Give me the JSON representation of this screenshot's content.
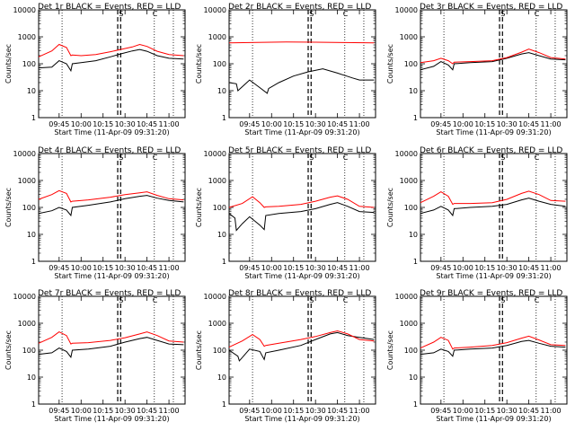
{
  "colors": {
    "events": "#000000",
    "lld": "#ff0000",
    "axes": "#000000",
    "background": "#ffffff"
  },
  "chart_data": [
    {
      "type": "line",
      "title": "Det 1r BLACK = Events, RED = LLD",
      "xlabel": "Start Time (11-Apr-09 09:31:20)",
      "ylabel": "Counts/sec",
      "yscale": "log",
      "ylim": [
        1,
        10000
      ],
      "xlim": [
        "09:31",
        "11:11"
      ],
      "yticks": [
        "1",
        "10",
        "100",
        "1000",
        "10000"
      ],
      "xticks": [
        "09:45",
        "10:00",
        "10:15",
        "10:30",
        "10:45",
        "11:00"
      ],
      "markers": [
        "S",
        "C"
      ],
      "vlines_dotted": [
        "09:47",
        "10:50",
        "11:03"
      ],
      "vlines_dashed": [
        "10:25",
        "10:27"
      ],
      "series": [
        {
          "name": "Events",
          "x": [
            "09:31",
            "09:40",
            "09:45",
            "09:50",
            "09:53",
            "09:54",
            "10:00",
            "10:10",
            "10:20",
            "10:28",
            "10:35",
            "10:40",
            "10:45",
            "10:52",
            "11:00",
            "11:10"
          ],
          "y": [
            70,
            75,
            130,
            100,
            55,
            100,
            110,
            130,
            180,
            240,
            300,
            340,
            290,
            200,
            160,
            150
          ]
        },
        {
          "name": "LLD",
          "x": [
            "09:31",
            "09:40",
            "09:45",
            "09:50",
            "09:53",
            "09:54",
            "10:00",
            "10:10",
            "10:20",
            "10:28",
            "10:35",
            "10:40",
            "10:45",
            "10:52",
            "11:00",
            "11:10"
          ],
          "y": [
            180,
            300,
            520,
            400,
            200,
            210,
            200,
            220,
            280,
            350,
            420,
            520,
            440,
            290,
            220,
            200
          ]
        }
      ]
    },
    {
      "type": "line",
      "title": "Det 2r BLACK = Events, RED = LLD",
      "xlabel": "Start Time (11-Apr-09 09:31:20)",
      "ylabel": "Counts/sec",
      "yscale": "log",
      "ylim": [
        1,
        10000
      ],
      "xlim": [
        "09:31",
        "11:11"
      ],
      "yticks": [
        "1",
        "10",
        "100",
        "1000",
        "10000"
      ],
      "xticks": [
        "09:45",
        "10:00",
        "10:15",
        "10:30",
        "10:45",
        "11:00"
      ],
      "markers": [
        "S",
        "C"
      ],
      "vlines_dotted": [
        "09:47",
        "10:50",
        "11:03"
      ],
      "vlines_dashed": [
        "10:25",
        "10:27"
      ],
      "series": [
        {
          "name": "Events",
          "x": [
            "09:31",
            "09:36",
            "09:37",
            "09:45",
            "09:52",
            "09:57",
            "09:58",
            "10:05",
            "10:15",
            "10:25",
            "10:35",
            "10:45",
            "10:55",
            "11:00",
            "11:10"
          ],
          "y": [
            20,
            18,
            10,
            25,
            13,
            8,
            12,
            20,
            35,
            50,
            65,
            45,
            30,
            25,
            25
          ]
        },
        {
          "name": "LLD",
          "x": [
            "09:31",
            "09:50",
            "10:10",
            "10:30",
            "10:50",
            "11:10"
          ],
          "y": [
            600,
            620,
            640,
            630,
            610,
            600
          ]
        }
      ]
    },
    {
      "type": "line",
      "title": "Det 3r BLACK = Events, RED = LLD",
      "xlabel": "Start Time (11-Apr-09 09:31:20)",
      "ylabel": "Counts/sec",
      "yscale": "log",
      "ylim": [
        1,
        10000
      ],
      "xlim": [
        "09:31",
        "11:11"
      ],
      "yticks": [
        "1",
        "10",
        "100",
        "1000",
        "10000"
      ],
      "xticks": [
        "09:45",
        "10:00",
        "10:15",
        "10:30",
        "10:45",
        "11:00"
      ],
      "markers": [
        "S",
        "C"
      ],
      "vlines_dotted": [
        "09:47",
        "10:50",
        "11:03"
      ],
      "vlines_dashed": [
        "10:25",
        "10:27"
      ],
      "series": [
        {
          "name": "Events",
          "x": [
            "09:31",
            "09:40",
            "09:45",
            "09:50",
            "09:53",
            "09:54",
            "10:05",
            "10:20",
            "10:30",
            "10:40",
            "10:45",
            "10:52",
            "11:00",
            "11:10"
          ],
          "y": [
            60,
            80,
            120,
            90,
            60,
            100,
            110,
            120,
            160,
            230,
            260,
            200,
            150,
            140
          ]
        },
        {
          "name": "LLD",
          "x": [
            "09:31",
            "09:40",
            "09:45",
            "09:50",
            "09:53",
            "09:54",
            "10:05",
            "10:20",
            "10:30",
            "10:40",
            "10:45",
            "10:52",
            "11:00",
            "11:10"
          ],
          "y": [
            110,
            130,
            160,
            130,
            100,
            115,
            120,
            130,
            170,
            270,
            350,
            260,
            170,
            150
          ]
        }
      ]
    },
    {
      "type": "line",
      "title": "Det 4r BLACK = Events, RED = LLD",
      "xlabel": "Start Time (11-Apr-09 09:31:20)",
      "ylabel": "Counts/sec",
      "yscale": "log",
      "ylim": [
        1,
        10000
      ],
      "xlim": [
        "09:31",
        "11:11"
      ],
      "yticks": [
        "1",
        "10",
        "100",
        "1000",
        "10000"
      ],
      "xticks": [
        "09:45",
        "10:00",
        "10:15",
        "10:30",
        "10:45",
        "11:00"
      ],
      "markers": [
        "S",
        "C"
      ],
      "vlines_dotted": [
        "09:47",
        "10:50",
        "11:03"
      ],
      "vlines_dashed": [
        "10:25",
        "10:27"
      ],
      "series": [
        {
          "name": "Events",
          "x": [
            "09:31",
            "09:40",
            "09:45",
            "09:50",
            "09:53",
            "09:54",
            "10:05",
            "10:20",
            "10:30",
            "10:40",
            "10:45",
            "10:52",
            "11:00",
            "11:10"
          ],
          "y": [
            60,
            75,
            100,
            80,
            50,
            100,
            120,
            160,
            210,
            260,
            280,
            220,
            180,
            160
          ]
        },
        {
          "name": "LLD",
          "x": [
            "09:31",
            "09:40",
            "09:45",
            "09:50",
            "09:53",
            "09:54",
            "10:05",
            "10:20",
            "10:30",
            "10:40",
            "10:45",
            "10:52",
            "11:00",
            "11:10"
          ],
          "y": [
            200,
            300,
            420,
            330,
            160,
            170,
            190,
            240,
            300,
            350,
            380,
            280,
            210,
            190
          ]
        }
      ]
    },
    {
      "type": "line",
      "title": "Det 5r BLACK = Events, RED = LLD",
      "xlabel": "Start Time (11-Apr-09 09:31:20)",
      "ylabel": "Counts/sec",
      "yscale": "log",
      "ylim": [
        1,
        10000
      ],
      "xlim": [
        "09:31",
        "11:11"
      ],
      "yticks": [
        "1",
        "10",
        "100",
        "1000",
        "10000"
      ],
      "xticks": [
        "09:45",
        "10:00",
        "10:15",
        "10:30",
        "10:45",
        "11:00"
      ],
      "markers": [
        "S",
        "C"
      ],
      "vlines_dotted": [
        "09:47",
        "10:50",
        "11:03"
      ],
      "vlines_dashed": [
        "10:25",
        "10:27"
      ],
      "series": [
        {
          "name": "Events",
          "x": [
            "09:31",
            "09:35",
            "09:36",
            "09:40",
            "09:45",
            "09:52",
            "09:55",
            "09:56",
            "10:05",
            "10:20",
            "10:30",
            "10:40",
            "10:45",
            "10:52",
            "11:00",
            "11:10"
          ],
          "y": [
            60,
            40,
            14,
            25,
            45,
            22,
            15,
            50,
            60,
            70,
            90,
            130,
            150,
            110,
            70,
            65
          ]
        },
        {
          "name": "LLD",
          "x": [
            "09:31",
            "09:40",
            "09:47",
            "09:52",
            "09:55",
            "09:56",
            "10:05",
            "10:20",
            "10:30",
            "10:40",
            "10:45",
            "10:52",
            "11:00",
            "11:10"
          ],
          "y": [
            100,
            140,
            250,
            150,
            100,
            105,
            110,
            130,
            170,
            240,
            270,
            200,
            110,
            100
          ]
        }
      ]
    },
    {
      "type": "line",
      "title": "Det 6r BLACK = Events, RED = LLD",
      "xlabel": "Start Time (11-Apr-09 09:31:20)",
      "ylabel": "Counts/sec",
      "yscale": "log",
      "ylim": [
        1,
        10000
      ],
      "xlim": [
        "09:31",
        "11:11"
      ],
      "yticks": [
        "1",
        "10",
        "100",
        "1000",
        "10000"
      ],
      "xticks": [
        "09:45",
        "10:00",
        "10:15",
        "10:30",
        "10:45",
        "11:00"
      ],
      "markers": [
        "S",
        "C"
      ],
      "vlines_dotted": [
        "09:47",
        "10:50",
        "11:03"
      ],
      "vlines_dashed": [
        "10:25",
        "10:27"
      ],
      "series": [
        {
          "name": "Events",
          "x": [
            "09:31",
            "09:40",
            "09:45",
            "09:50",
            "09:53",
            "09:54",
            "10:05",
            "10:20",
            "10:30",
            "10:40",
            "10:45",
            "10:52",
            "11:00",
            "11:10"
          ],
          "y": [
            60,
            80,
            110,
            80,
            50,
            90,
            100,
            110,
            130,
            190,
            220,
            170,
            130,
            110
          ]
        },
        {
          "name": "LLD",
          "x": [
            "09:31",
            "09:40",
            "09:45",
            "09:50",
            "09:53",
            "09:54",
            "10:05",
            "10:20",
            "10:30",
            "10:40",
            "10:45",
            "10:52",
            "11:00",
            "11:10"
          ],
          "y": [
            150,
            260,
            380,
            260,
            130,
            140,
            140,
            150,
            200,
            330,
            400,
            300,
            180,
            170
          ]
        }
      ]
    },
    {
      "type": "line",
      "title": "Det 7r BLACK = Events, RED = LLD",
      "xlabel": "Start Time (11-Apr-09 09:31:20)",
      "ylabel": "Counts/sec",
      "yscale": "log",
      "ylim": [
        1,
        10000
      ],
      "xlim": [
        "09:31",
        "11:11"
      ],
      "yticks": [
        "1",
        "10",
        "100",
        "1000",
        "10000"
      ],
      "xticks": [
        "09:45",
        "10:00",
        "10:15",
        "10:30",
        "10:45",
        "11:00"
      ],
      "markers": [
        "S",
        "C"
      ],
      "vlines_dotted": [
        "09:47",
        "10:50",
        "11:03"
      ],
      "vlines_dashed": [
        "10:25",
        "10:27"
      ],
      "series": [
        {
          "name": "Events",
          "x": [
            "09:31",
            "09:40",
            "09:45",
            "09:50",
            "09:53",
            "09:54",
            "10:05",
            "10:20",
            "10:30",
            "10:40",
            "10:45",
            "10:52",
            "11:00",
            "11:10"
          ],
          "y": [
            70,
            80,
            120,
            90,
            55,
            100,
            110,
            140,
            200,
            270,
            300,
            230,
            170,
            160
          ]
        },
        {
          "name": "LLD",
          "x": [
            "09:31",
            "09:40",
            "09:45",
            "09:50",
            "09:53",
            "09:54",
            "10:05",
            "10:20",
            "10:30",
            "10:40",
            "10:45",
            "10:52",
            "11:00",
            "11:10"
          ],
          "y": [
            180,
            300,
            480,
            350,
            170,
            180,
            190,
            230,
            290,
            400,
            480,
            350,
            220,
            200
          ]
        }
      ]
    },
    {
      "type": "line",
      "title": "Det 8r BLACK = Events, RED = LLD",
      "xlabel": "Start Time (11-Apr-09 09:31:20)",
      "ylabel": "Counts/sec",
      "yscale": "log",
      "ylim": [
        1,
        10000
      ],
      "xlim": [
        "09:31",
        "11:11"
      ],
      "yticks": [
        "1",
        "10",
        "100",
        "1000",
        "10000"
      ],
      "xticks": [
        "09:45",
        "10:00",
        "10:15",
        "10:30",
        "10:45",
        "11:00"
      ],
      "markers": [
        "S",
        "C"
      ],
      "vlines_dotted": [
        "09:47",
        "10:50",
        "11:03"
      ],
      "vlines_dashed": [
        "10:25",
        "10:27"
      ],
      "series": [
        {
          "name": "Events",
          "x": [
            "09:31",
            "09:37",
            "09:38",
            "09:45",
            "09:52",
            "09:55",
            "09:56",
            "10:05",
            "10:20",
            "10:30",
            "10:40",
            "10:45",
            "10:52",
            "11:00",
            "11:10"
          ],
          "y": [
            100,
            60,
            40,
            110,
            90,
            45,
            80,
            100,
            150,
            250,
            400,
            450,
            350,
            300,
            250
          ]
        },
        {
          "name": "LLD",
          "x": [
            "09:31",
            "09:40",
            "09:47",
            "09:52",
            "09:55",
            "09:56",
            "10:05",
            "10:20",
            "10:30",
            "10:40",
            "10:45",
            "10:52",
            "11:00",
            "11:10"
          ],
          "y": [
            130,
            220,
            380,
            250,
            140,
            150,
            180,
            250,
            320,
            450,
            520,
            400,
            250,
            220
          ]
        }
      ]
    },
    {
      "type": "line",
      "title": "Det 9r BLACK = Events, RED = LLD",
      "xlabel": "Start Time (11-Apr-09 09:31:20)",
      "ylabel": "Counts/sec",
      "yscale": "log",
      "ylim": [
        1,
        10000
      ],
      "xlim": [
        "09:31",
        "11:11"
      ],
      "yticks": [
        "1",
        "10",
        "100",
        "1000",
        "10000"
      ],
      "xticks": [
        "09:45",
        "10:00",
        "10:15",
        "10:30",
        "10:45",
        "11:00"
      ],
      "markers": [
        "S",
        "C"
      ],
      "vlines_dotted": [
        "09:47",
        "10:50",
        "11:03"
      ],
      "vlines_dashed": [
        "10:25",
        "10:27"
      ],
      "series": [
        {
          "name": "Events",
          "x": [
            "09:31",
            "09:40",
            "09:45",
            "09:50",
            "09:53",
            "09:54",
            "10:05",
            "10:20",
            "10:30",
            "10:40",
            "10:45",
            "10:52",
            "11:00",
            "11:10"
          ],
          "y": [
            70,
            80,
            110,
            90,
            60,
            100,
            110,
            120,
            150,
            210,
            230,
            180,
            140,
            130
          ]
        },
        {
          "name": "LLD",
          "x": [
            "09:31",
            "09:40",
            "09:45",
            "09:50",
            "09:53",
            "09:54",
            "10:05",
            "10:20",
            "10:30",
            "10:40",
            "10:45",
            "10:52",
            "11:00",
            "11:10"
          ],
          "y": [
            120,
            200,
            300,
            230,
            110,
            120,
            130,
            150,
            190,
            280,
            330,
            240,
            160,
            150
          ]
        }
      ]
    }
  ]
}
